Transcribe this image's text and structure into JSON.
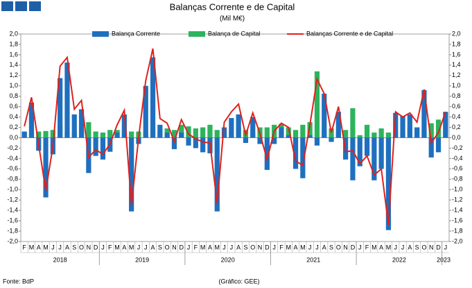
{
  "chart_data": {
    "type": "bar_line",
    "title": "Balanças Corrente e de Capital",
    "subtitle": "(Mil M€)",
    "source": "Fonte: BdP",
    "credit": "(Gráfico: GEE)",
    "groups": [
      {
        "year": "2018",
        "months": [
          "F",
          "M",
          "A",
          "M",
          "J",
          "J",
          "A",
          "S",
          "O",
          "N",
          "D"
        ]
      },
      {
        "year": "2019",
        "months": [
          "J",
          "F",
          "M",
          "A",
          "M",
          "J",
          "J",
          "A",
          "S",
          "O",
          "N",
          "D"
        ]
      },
      {
        "year": "2020",
        "months": [
          "J",
          "F",
          "M",
          "A",
          "M",
          "J",
          "J",
          "A",
          "S",
          "O",
          "N",
          "D"
        ]
      },
      {
        "year": "2021",
        "months": [
          "J",
          "F",
          "M",
          "A",
          "M",
          "J",
          "J",
          "A",
          "S",
          "O",
          "N",
          "D"
        ]
      },
      {
        "year": "2022",
        "months": [
          "J",
          "F",
          "M",
          "A",
          "M",
          "J",
          "J",
          "A",
          "S",
          "O",
          "N",
          "D"
        ]
      },
      {
        "year": "2023",
        "months": [
          "J"
        ]
      }
    ],
    "series": [
      {
        "name": "Balança Corrente",
        "color": "#1f6fbf",
        "kind": "bar",
        "values": [
          0.12,
          0.68,
          -0.25,
          -1.15,
          -0.32,
          1.15,
          1.45,
          0.45,
          0.55,
          -0.68,
          -0.35,
          -0.42,
          -0.27,
          0.1,
          0.45,
          -1.42,
          -0.12,
          1.0,
          1.55,
          0.25,
          0.1,
          -0.22,
          0.1,
          -0.15,
          -0.2,
          -0.28,
          -0.3,
          -1.42,
          0.2,
          0.38,
          0.45,
          -0.1,
          0.4,
          -0.12,
          -0.62,
          -0.12,
          0.2,
          0.05,
          -0.6,
          -0.78,
          0.05,
          -0.15,
          0.85,
          -0.08,
          0.5,
          -0.42,
          -0.82,
          -0.55,
          -0.35,
          -0.82,
          -0.6,
          -1.78,
          0.48,
          0.42,
          0.45,
          0.2,
          0.92,
          -0.38,
          -0.28,
          0.5
        ]
      },
      {
        "name": "Balança de Capital",
        "color": "#2db35d",
        "kind": "bar",
        "values": [
          0.1,
          0.1,
          0.12,
          0.13,
          0.15,
          0.25,
          0.1,
          0.1,
          0.15,
          0.3,
          0.12,
          0.1,
          0.15,
          0.15,
          0.08,
          0.12,
          0.12,
          0.1,
          0.15,
          0.12,
          0.18,
          0.15,
          0.25,
          0.22,
          0.18,
          0.2,
          0.25,
          0.15,
          0.1,
          0.12,
          0.2,
          0.15,
          0.1,
          0.2,
          0.2,
          0.25,
          0.27,
          0.2,
          0.15,
          0.25,
          0.3,
          1.28,
          0.15,
          0.18,
          0.1,
          0.15,
          0.57,
          0.05,
          0.25,
          0.1,
          0.18,
          0.1,
          0.05,
          0.08,
          0.2,
          0.2,
          0.15,
          0.28,
          0.35,
          0.35
        ]
      },
      {
        "name": "Balanças Corrente e de Capital",
        "color": "#e0201b",
        "kind": "line",
        "values": [
          0.22,
          0.78,
          -0.13,
          -1.02,
          -0.17,
          1.38,
          1.55,
          0.55,
          0.72,
          -0.38,
          -0.23,
          -0.32,
          -0.12,
          0.25,
          0.53,
          -1.3,
          0.0,
          1.1,
          1.72,
          0.37,
          0.28,
          -0.07,
          0.35,
          0.07,
          -0.02,
          -0.08,
          -0.1,
          -1.27,
          0.3,
          0.5,
          0.65,
          0.05,
          0.48,
          0.08,
          -0.42,
          0.13,
          0.28,
          0.2,
          -0.45,
          -0.53,
          0.25,
          1.13,
          0.85,
          0.1,
          0.6,
          -0.27,
          -0.25,
          -0.5,
          -0.35,
          -0.72,
          -0.6,
          -1.68,
          0.5,
          0.4,
          0.48,
          0.3,
          0.93,
          -0.1,
          0.1,
          0.5
        ]
      }
    ],
    "ylim": [
      -2,
      2
    ],
    "yticks": [
      {
        "value": -2,
        "label": "-2,0"
      },
      {
        "value": -1.8,
        "label": "-1,8"
      },
      {
        "value": -1.6,
        "label": "-1,6"
      },
      {
        "value": -1.4,
        "label": "-1,4"
      },
      {
        "value": -1.2,
        "label": "-1,2"
      },
      {
        "value": -1,
        "label": "-1,0"
      },
      {
        "value": -0.8,
        "label": "-0,8"
      },
      {
        "value": -0.6,
        "label": "-0,6"
      },
      {
        "value": -0.4,
        "label": "-0,4"
      },
      {
        "value": -0.2,
        "label": "-0,2"
      },
      {
        "value": 0,
        "label": "0,0"
      },
      {
        "value": 0.2,
        "label": "0,2"
      },
      {
        "value": 0.4,
        "label": "0,4"
      },
      {
        "value": 0.6,
        "label": "0,6"
      },
      {
        "value": 0.8,
        "label": "0,8"
      },
      {
        "value": 1,
        "label": "1,0"
      },
      {
        "value": 1.2,
        "label": "1,2"
      },
      {
        "value": 1.4,
        "label": "1,4"
      },
      {
        "value": 1.6,
        "label": "1,6"
      },
      {
        "value": 1.8,
        "label": "1,8"
      },
      {
        "value": 2,
        "label": "2,0"
      }
    ],
    "grid": false
  }
}
